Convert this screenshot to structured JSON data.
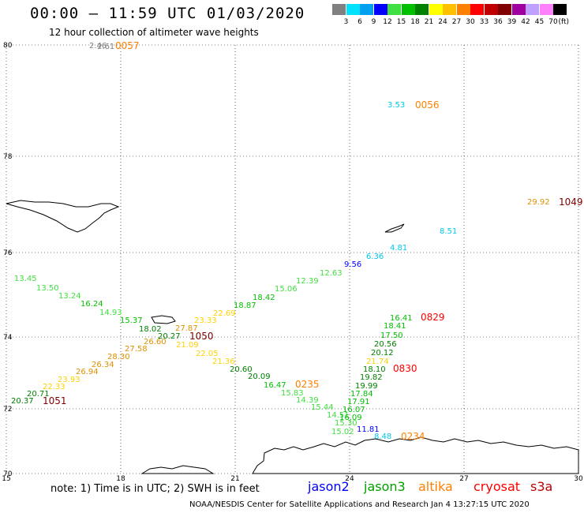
{
  "title": "00:00 – 11:59 UTC 01/03/2020",
  "subtitle": "12 hour collection of altimeter wave heights",
  "legend": {
    "unit": "(ft)",
    "items": [
      {
        "label": "3",
        "color": "#808080"
      },
      {
        "label": "6",
        "color": "#00e0ff"
      },
      {
        "label": "9",
        "color": "#00a0f0"
      },
      {
        "label": "12",
        "color": "#0000ff"
      },
      {
        "label": "15",
        "color": "#40e040"
      },
      {
        "label": "18",
        "color": "#00c000"
      },
      {
        "label": "21",
        "color": "#008000"
      },
      {
        "label": "24",
        "color": "#ffff00"
      },
      {
        "label": "27",
        "color": "#ffc000"
      },
      {
        "label": "30",
        "color": "#ff8000"
      },
      {
        "label": "33",
        "color": "#ff0000"
      },
      {
        "label": "36",
        "color": "#c00000"
      },
      {
        "label": "39",
        "color": "#800000"
      },
      {
        "label": "42",
        "color": "#a000a0"
      },
      {
        "label": "45",
        "color": "#c0a0ff"
      },
      {
        "label": "70",
        "color": "#ff80ff"
      },
      {
        "label": "",
        "color": "#000000"
      }
    ]
  },
  "axes": {
    "lat_labels": [
      "80",
      "78",
      "76",
      "74",
      "72",
      "70"
    ],
    "lon_labels": [
      "15",
      "18",
      "21",
      "24",
      "27",
      "30"
    ]
  },
  "observations": [
    {
      "text": "2.46",
      "color": "#808080"
    },
    {
      "text": "2.61",
      "color": "#808080"
    },
    {
      "text": "3.53",
      "color": "#00c8e8"
    },
    {
      "text": "29.92",
      "color": "#e09000"
    },
    {
      "text": "8.51",
      "color": "#00c8e8"
    },
    {
      "text": "4.81",
      "color": "#00c8e8"
    },
    {
      "text": "6.36",
      "color": "#00c8e8"
    },
    {
      "text": "9.56",
      "color": "#0000ff"
    },
    {
      "text": "12.63",
      "color": "#40e040"
    },
    {
      "text": "12.39",
      "color": "#40e040"
    },
    {
      "text": "15.06",
      "color": "#40e040"
    },
    {
      "text": "18.42",
      "color": "#00c000"
    },
    {
      "text": "18.87",
      "color": "#00c000"
    },
    {
      "text": "22.69",
      "color": "#ffd000"
    },
    {
      "text": "23.33",
      "color": "#ffd000"
    },
    {
      "text": "27.87",
      "color": "#e09000"
    },
    {
      "text": "20.27",
      "color": "#008000"
    },
    {
      "text": "26.60",
      "color": "#e09000"
    },
    {
      "text": "18.02",
      "color": "#008000"
    },
    {
      "text": "15.37",
      "color": "#00c000"
    },
    {
      "text": "14.93",
      "color": "#40e040"
    },
    {
      "text": "16.24",
      "color": "#00c000"
    },
    {
      "text": "13.24",
      "color": "#40e040"
    },
    {
      "text": "13.50",
      "color": "#40e040"
    },
    {
      "text": "13.45",
      "color": "#40e040"
    },
    {
      "text": "21.09",
      "color": "#ffd000"
    },
    {
      "text": "22.05",
      "color": "#ffd000"
    },
    {
      "text": "21.36",
      "color": "#ffd000"
    },
    {
      "text": "20.60",
      "color": "#008000"
    },
    {
      "text": "20.09",
      "color": "#008000"
    },
    {
      "text": "16.47",
      "color": "#00c000"
    },
    {
      "text": "15.83",
      "color": "#40e040"
    },
    {
      "text": "14.39",
      "color": "#40e040"
    },
    {
      "text": "15.44",
      "color": "#40e040"
    },
    {
      "text": "14.51",
      "color": "#40e040"
    },
    {
      "text": "15.30",
      "color": "#40e040"
    },
    {
      "text": "15.02",
      "color": "#40e040"
    },
    {
      "text": "27.58",
      "color": "#e09000"
    },
    {
      "text": "28.30",
      "color": "#e09000"
    },
    {
      "text": "26.34",
      "color": "#e09000"
    },
    {
      "text": "26.94",
      "color": "#e09000"
    },
    {
      "text": "23.93",
      "color": "#ffd000"
    },
    {
      "text": "22.33",
      "color": "#ffd000"
    },
    {
      "text": "20.71",
      "color": "#008000"
    },
    {
      "text": "20.37",
      "color": "#008000"
    },
    {
      "text": "16.41",
      "color": "#00c000"
    },
    {
      "text": "18.41",
      "color": "#00c000"
    },
    {
      "text": "17.50",
      "color": "#00c000"
    },
    {
      "text": "20.56",
      "color": "#008000"
    },
    {
      "text": "20.12",
      "color": "#008000"
    },
    {
      "text": "21.74",
      "color": "#ffd000"
    },
    {
      "text": "18.10",
      "color": "#008000"
    },
    {
      "text": "19.82",
      "color": "#008000"
    },
    {
      "text": "19.99",
      "color": "#008000"
    },
    {
      "text": "17.84",
      "color": "#00c000"
    },
    {
      "text": "17.91",
      "color": "#00c000"
    },
    {
      "text": "16.07",
      "color": "#00c000"
    },
    {
      "text": "16.09",
      "color": "#00c000"
    },
    {
      "text": "11.81",
      "color": "#0000ff"
    },
    {
      "text": "8.48",
      "color": "#00c8e8"
    }
  ],
  "pass_times": [
    {
      "text": "0057",
      "color": "#ff8000"
    },
    {
      "text": "0056",
      "color": "#ff8000"
    },
    {
      "text": "1049",
      "color": "#800000"
    },
    {
      "text": "0829",
      "color": "#ff0000"
    },
    {
      "text": "1050",
      "color": "#800000"
    },
    {
      "text": "0830",
      "color": "#ff0000"
    },
    {
      "text": "0235",
      "color": "#ff8000"
    },
    {
      "text": "1051",
      "color": "#800000"
    },
    {
      "text": "0234",
      "color": "#ff8000"
    }
  ],
  "note": "note:  1) Time is in UTC;  2) SWH is in feet",
  "satellites": [
    {
      "name": "jason2",
      "color": "#0000ff"
    },
    {
      "name": "jason3",
      "color": "#00a000"
    },
    {
      "name": "altika",
      "color": "#ff8000"
    },
    {
      "name": "cryosat",
      "color": "#ff0000"
    },
    {
      "name": "s3a",
      "color": "#c00000"
    }
  ],
  "footer": "NOAA/NESDIS Center for Satellite Applications and Research     Jan  4 13:27:15 UTC 2020"
}
